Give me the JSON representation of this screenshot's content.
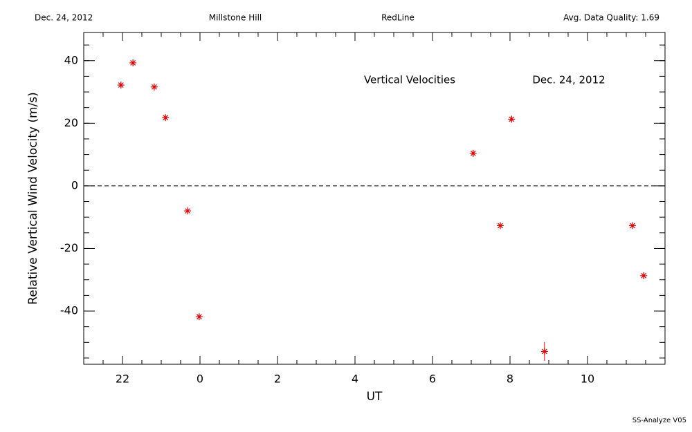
{
  "chart_data": {
    "type": "scatter",
    "header": [
      "Dec. 24, 2012",
      "Millstone Hill",
      "RedLine",
      "Avg. Data Quality: 1.69"
    ],
    "annotations": [
      "Vertical Velocities",
      "Dec. 24, 2012"
    ],
    "footer": "SS-Analyze V05",
    "xlabel": "UT",
    "ylabel": "Relative Vertical Wind Velocity (m/s)",
    "xlim": [
      -3,
      12
    ],
    "ylim": [
      -57,
      49
    ],
    "xticks": [
      {
        "value": -2,
        "label": "22"
      },
      0,
      2,
      4,
      6,
      8,
      10
    ],
    "yticks": [
      -40,
      -20,
      0,
      20,
      40
    ],
    "xminor": 0.5,
    "yminor": 5,
    "reference_line": 0,
    "series": [
      {
        "color": "#e00000",
        "x": [
          -2.04,
          -1.73,
          -1.18,
          -0.89,
          -0.32,
          -0.02,
          7.05,
          7.75,
          8.04,
          8.89,
          11.16,
          11.45
        ],
        "values": [
          32.2,
          39.3,
          31.6,
          21.8,
          -8.0,
          -41.8,
          10.4,
          -12.7,
          21.3,
          -52.9,
          -12.7,
          -28.7
        ],
        "errors": [
          1,
          1,
          1,
          1,
          1,
          1,
          1,
          1,
          1,
          3,
          1,
          1
        ]
      }
    ]
  }
}
